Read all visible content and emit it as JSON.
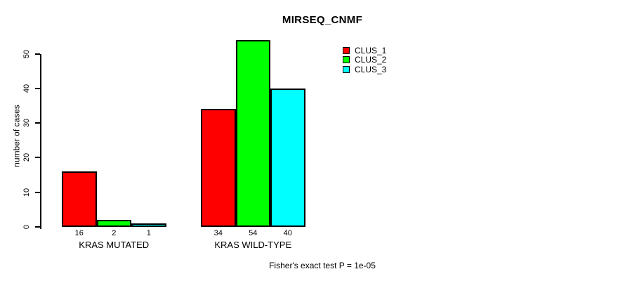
{
  "title": "MIRSEQ_CNMF",
  "y_axis": {
    "label": "number of cases"
  },
  "footer": "Fisher's exact test P = 1e-05",
  "chart_data": {
    "type": "bar",
    "title": "MIRSEQ_CNMF",
    "categories": [
      "KRAS MUTATED",
      "KRAS WILD-TYPE"
    ],
    "series": [
      {
        "name": "CLUS_1",
        "color": "#ff0000",
        "values": [
          16,
          34
        ]
      },
      {
        "name": "CLUS_2",
        "color": "#00ff00",
        "values": [
          2,
          54
        ]
      },
      {
        "name": "CLUS_3",
        "color": "#00ffff",
        "values": [
          1,
          40
        ]
      }
    ],
    "xlabel": "",
    "ylabel": "number of cases",
    "ylim": [
      0,
      50
    ],
    "yticks": [
      0,
      10,
      20,
      30,
      40,
      50
    ],
    "bar_value_labels_shown": true,
    "grid": false,
    "legend_position": "top-right",
    "annotation": "Fisher's exact test P = 1e-05"
  }
}
